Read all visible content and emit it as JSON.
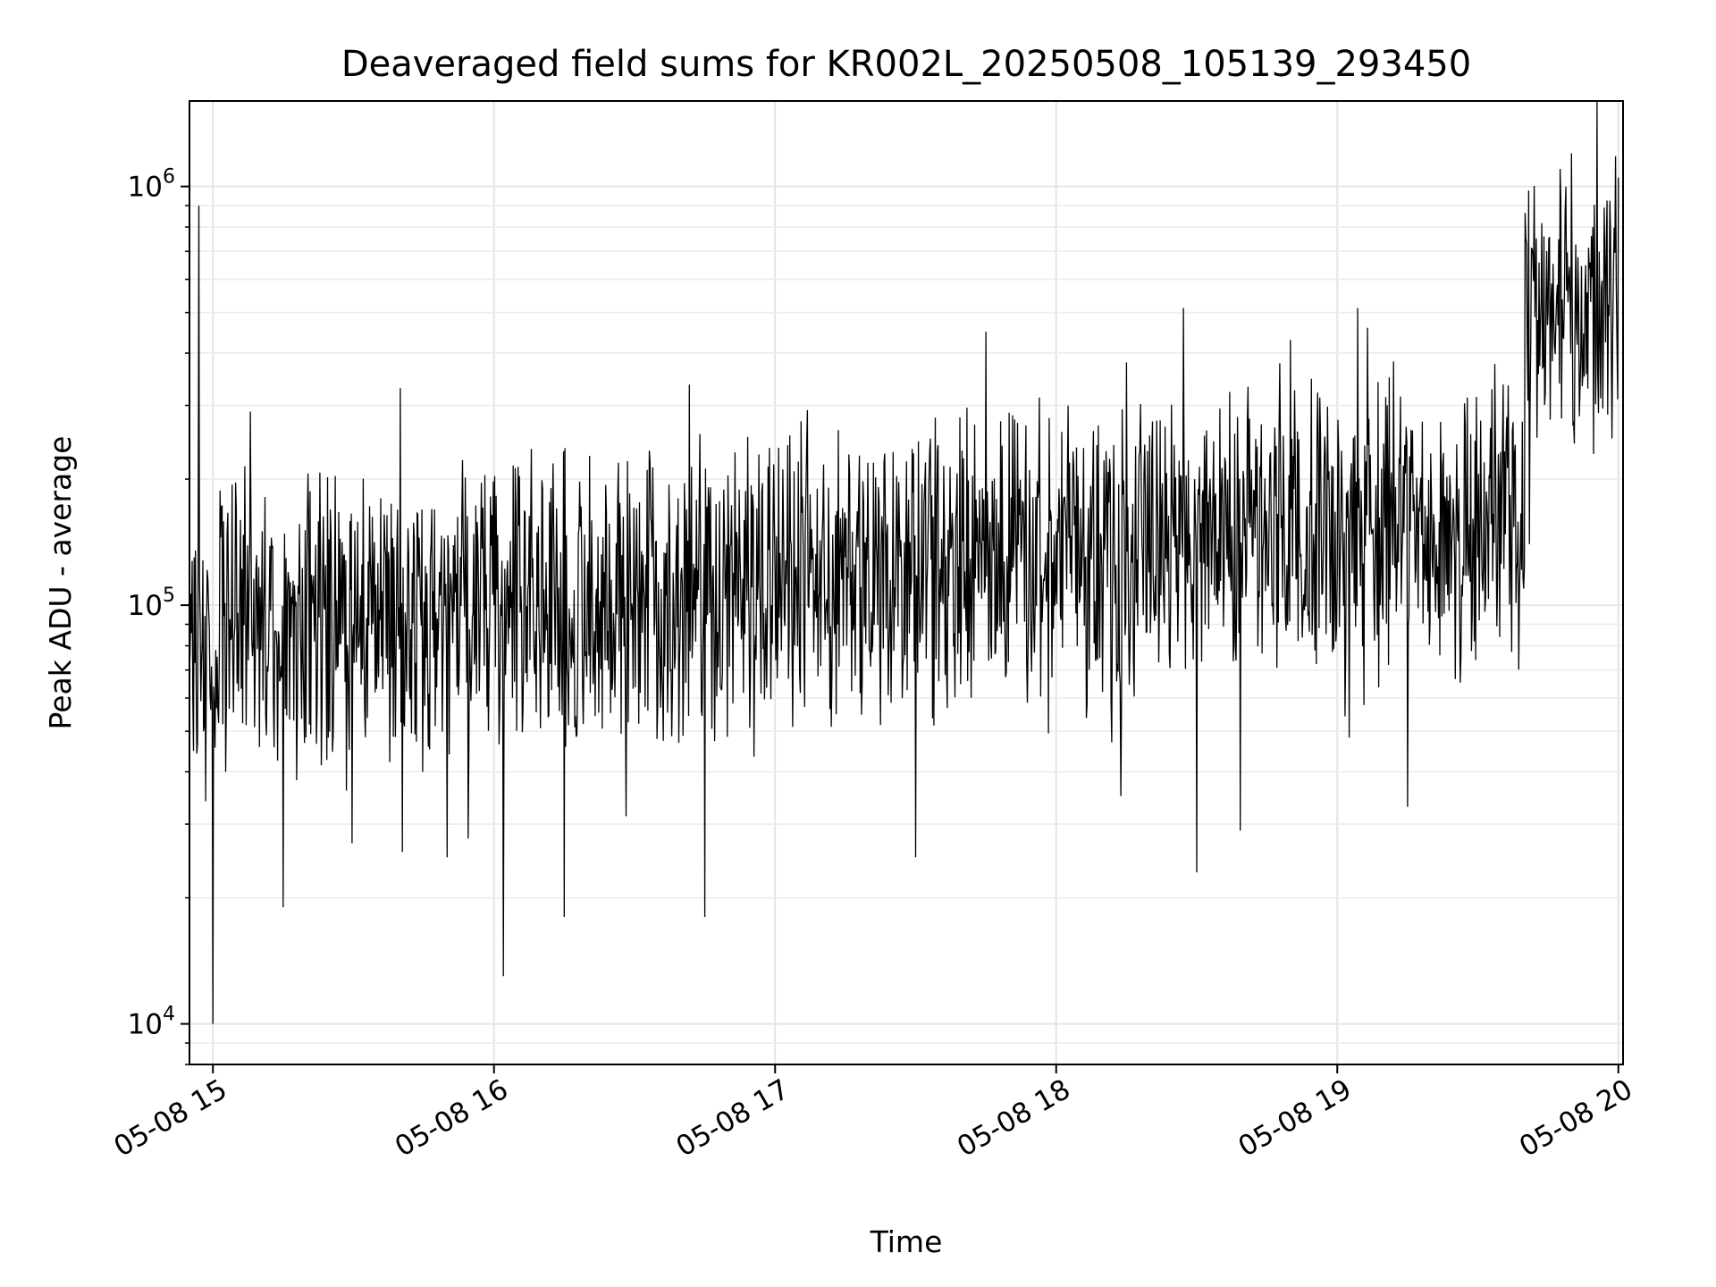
{
  "chart_data": {
    "type": "line",
    "title": "Deaveraged field sums for KR002L_20250508_105139_293450",
    "xlabel": "Time",
    "ylabel": "Peak ADU - average",
    "yscale": "log",
    "ylim": [
      8000,
      1600000
    ],
    "xlim": [
      "2025-05-08T14:55",
      "2025-05-08T20:01"
    ],
    "x_ticks": [
      {
        "t": "2025-05-08T15:00",
        "label": "05-08 15"
      },
      {
        "t": "2025-05-08T16:00",
        "label": "05-08 16"
      },
      {
        "t": "2025-05-08T17:00",
        "label": "05-08 17"
      },
      {
        "t": "2025-05-08T18:00",
        "label": "05-08 18"
      },
      {
        "t": "2025-05-08T19:00",
        "label": "05-08 19"
      },
      {
        "t": "2025-05-08T20:00",
        "label": "05-08 20"
      }
    ],
    "y_ticks": [
      {
        "value": 10000,
        "base": "10",
        "exp": "4"
      },
      {
        "value": 100000,
        "base": "10",
        "exp": "5"
      },
      {
        "value": 1000000,
        "base": "10",
        "exp": "6"
      }
    ],
    "grid": true,
    "line_color": "#000000",
    "series": [
      {
        "values": [
          {
            "t": "2025-05-08T14:55",
            "y": 70000
          },
          {
            "t": "2025-05-08T14:56",
            "y": 130000
          },
          {
            "t": "2025-05-08T14:57",
            "y": 900000
          },
          {
            "t": "2025-05-08T14:58",
            "y": 50000
          },
          {
            "t": "2025-05-08T15:00",
            "y": 10000
          },
          {
            "t": "2025-05-08T15:05",
            "y": 170000
          },
          {
            "t": "2025-05-08T15:08",
            "y": 290000
          },
          {
            "t": "2025-05-08T15:15",
            "y": 19000
          },
          {
            "t": "2025-05-08T15:20",
            "y": 100000
          },
          {
            "t": "2025-05-08T15:30",
            "y": 90000
          },
          {
            "t": "2025-05-08T15:40",
            "y": 330000
          },
          {
            "t": "2025-05-08T15:50",
            "y": 25000
          },
          {
            "t": "2025-05-08T16:00",
            "y": 100000
          },
          {
            "t": "2025-05-08T16:02",
            "y": 13000
          },
          {
            "t": "2025-05-08T16:15",
            "y": 18000
          },
          {
            "t": "2025-05-08T16:30",
            "y": 110000
          },
          {
            "t": "2025-05-08T16:45",
            "y": 18000
          },
          {
            "t": "2025-05-08T17:00",
            "y": 120000
          },
          {
            "t": "2025-05-08T17:15",
            "y": 130000
          },
          {
            "t": "2025-05-08T17:30",
            "y": 25000
          },
          {
            "t": "2025-05-08T17:45",
            "y": 450000
          },
          {
            "t": "2025-05-08T18:00",
            "y": 150000
          },
          {
            "t": "2025-05-08T18:15",
            "y": 380000
          },
          {
            "t": "2025-05-08T18:30",
            "y": 23000
          },
          {
            "t": "2025-05-08T18:45",
            "y": 150000
          },
          {
            "t": "2025-05-08T18:50",
            "y": 430000
          },
          {
            "t": "2025-05-08T19:00",
            "y": 120000
          },
          {
            "t": "2025-05-08T19:15",
            "y": 33000
          },
          {
            "t": "2025-05-08T19:30",
            "y": 130000
          },
          {
            "t": "2025-05-08T19:41",
            "y": 140000
          },
          {
            "t": "2025-05-08T19:45",
            "y": 500000
          },
          {
            "t": "2025-05-08T19:50",
            "y": 1200000
          },
          {
            "t": "2025-05-08T19:55",
            "y": 600000
          },
          {
            "t": "2025-05-08T20:00",
            "y": 1050000
          }
        ]
      }
    ]
  }
}
